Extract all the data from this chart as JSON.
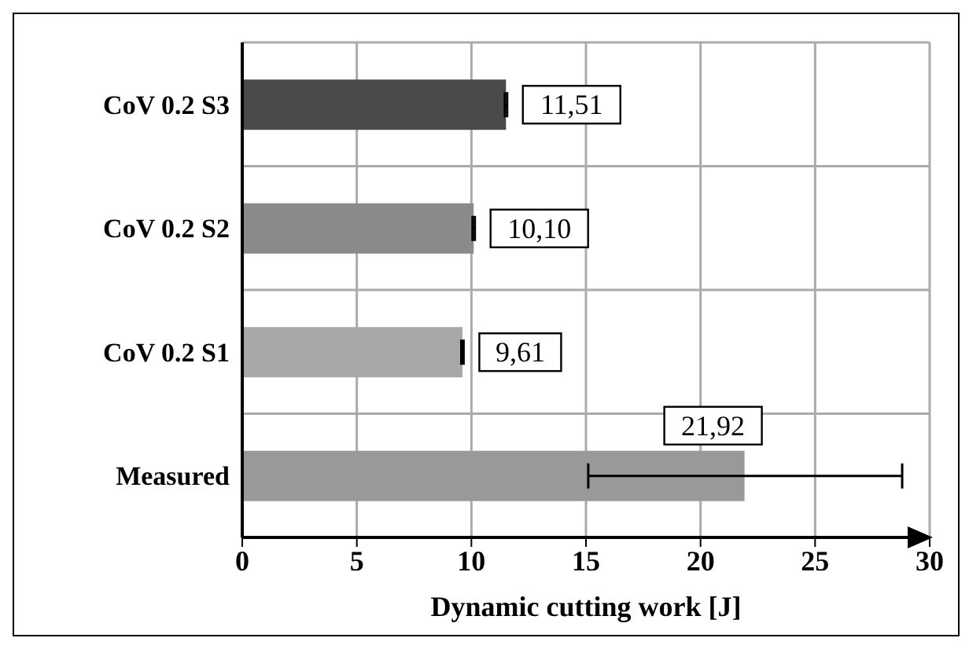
{
  "chart_data": {
    "type": "bar",
    "orientation": "horizontal",
    "xlabel": "Dynamic cutting work [J]",
    "categories": [
      "CoV 0.2 S3",
      "CoV 0.2 S2",
      "CoV 0.2 S1",
      "Measured"
    ],
    "values": [
      11.51,
      10.1,
      9.61,
      21.92
    ],
    "colors": [
      "#4a4a4a",
      "#8a8a8a",
      "#a8a8a8",
      "#999999"
    ],
    "value_labels": [
      "11,51",
      "10,10",
      "9,61",
      "21,92"
    ],
    "errors": [
      0.05,
      0.05,
      0.05,
      [
        15.1,
        28.8
      ]
    ],
    "xlim": [
      0,
      30
    ],
    "xticks": [
      0,
      5,
      10,
      15,
      20,
      25,
      30
    ],
    "grid": true
  }
}
